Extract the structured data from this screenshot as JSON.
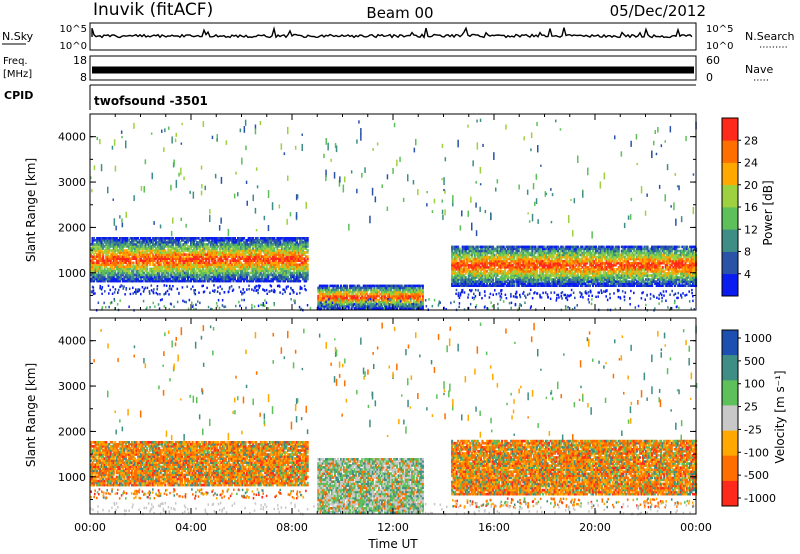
{
  "header": {
    "title": "Inuvik (fitACF)",
    "beam": "Beam 00",
    "date": "05/Dec/2012"
  },
  "strips": {
    "nsky_label": "N.Sky",
    "nsky_ticks": [
      "10^5",
      "10^0"
    ],
    "freq_label_1": "Freq.",
    "freq_label_2": "[MHz]",
    "freq_ticks": [
      "18",
      "8"
    ],
    "cpid_label": "CPID",
    "cpid_value": "twofsound -3501",
    "nsearch_label": "N.Search",
    "nave_label": "Nave",
    "nave_ticks": [
      "60",
      "0"
    ]
  },
  "colors": {
    "power_scale": [
      "#0a1cf0",
      "#2a53a8",
      "#3f8e86",
      "#5dc05a",
      "#9ed140",
      "#ffa800",
      "#ff6f00",
      "#ff2a1c"
    ],
    "velocity_scale": [
      "#1c4fb0",
      "#3f8e86",
      "#5dc05a",
      "#c8c8c8",
      "#ffa800",
      "#ff6f00",
      "#ff2a1c"
    ]
  },
  "chart_data": [
    {
      "type": "heatmap",
      "panel": "power",
      "ylabel": "Slant Range [km]",
      "xlim": [
        "00:00",
        "24:00"
      ],
      "ylim": [
        180,
        4500
      ],
      "yticks": [
        "1000",
        "2000",
        "3000",
        "4000"
      ],
      "colorbar": {
        "label": "Power [dB]",
        "ticks": [
          "4",
          "8",
          "12",
          "16",
          "20",
          "24",
          "28"
        ],
        "range": [
          0,
          32
        ]
      },
      "echo_regions": [
        {
          "t0": 0.0,
          "t1": 8.6,
          "r0": 800,
          "r1": 1750,
          "value": 24
        },
        {
          "t0": 9.0,
          "t1": 13.2,
          "r0": 200,
          "r1": 700,
          "value": 26
        },
        {
          "t0": 14.3,
          "t1": 24.0,
          "r0": 700,
          "r1": 1600,
          "value": 24
        }
      ]
    },
    {
      "type": "heatmap",
      "panel": "velocity",
      "ylabel": "Slant Range [km]",
      "xlabel": "Time UT",
      "xlim": [
        "00:00",
        "24:00"
      ],
      "ylim": [
        180,
        4500
      ],
      "yticks": [
        "1000",
        "2000",
        "3000",
        "4000"
      ],
      "xticks": [
        "00:00",
        "04:00",
        "08:00",
        "12:00",
        "16:00",
        "20:00",
        "00:00"
      ],
      "colorbar": {
        "label": "Velocity [m s⁻¹]",
        "ticks": [
          "1000",
          "500",
          "100",
          "25",
          "-25",
          "-100",
          "-500",
          "-1000"
        ]
      },
      "echo_regions": [
        {
          "t0": 0.0,
          "t1": 8.6,
          "r0": 800,
          "r1": 1750,
          "value": -200
        },
        {
          "t0": 9.0,
          "t1": 13.2,
          "r0": 200,
          "r1": 1400,
          "value": 50
        },
        {
          "t0": 14.3,
          "t1": 24.0,
          "r0": 600,
          "r1": 1800,
          "value": -200
        }
      ]
    }
  ]
}
